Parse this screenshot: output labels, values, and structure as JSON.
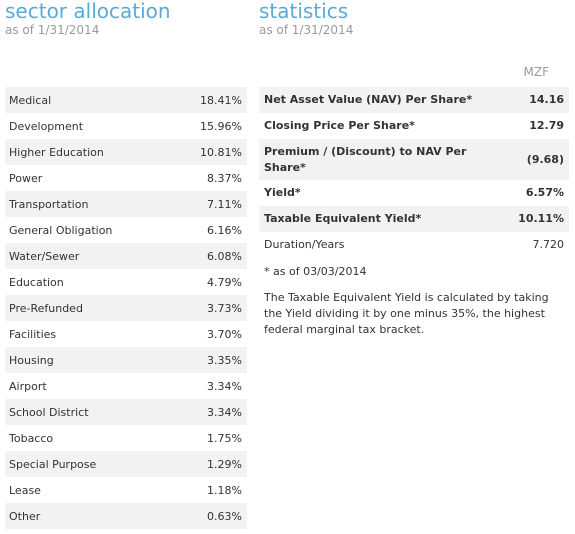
{
  "sector": {
    "title": "sector allocation",
    "as_of": "as of 1/31/2014",
    "rows": [
      {
        "name": "Medical",
        "value": "18.41%"
      },
      {
        "name": "Development",
        "value": "15.96%"
      },
      {
        "name": "Higher Education",
        "value": "10.81%"
      },
      {
        "name": "Power",
        "value": "8.37%"
      },
      {
        "name": "Transportation",
        "value": "7.11%"
      },
      {
        "name": "General Obligation",
        "value": "6.16%"
      },
      {
        "name": "Water/Sewer",
        "value": "6.08%"
      },
      {
        "name": "Education",
        "value": "4.79%"
      },
      {
        "name": "Pre-Refunded",
        "value": "3.73%"
      },
      {
        "name": "Facilities",
        "value": "3.70%"
      },
      {
        "name": "Housing",
        "value": "3.35%"
      },
      {
        "name": "Airport",
        "value": "3.34%"
      },
      {
        "name": "School District",
        "value": "3.34%"
      },
      {
        "name": "Tobacco",
        "value": "1.75%"
      },
      {
        "name": "Special Purpose",
        "value": "1.29%"
      },
      {
        "name": "Lease",
        "value": "1.18%"
      },
      {
        "name": "Other",
        "value": "0.63%"
      }
    ]
  },
  "statistics": {
    "title": "statistics",
    "as_of": "as of 1/31/2014",
    "ticker": "MZF",
    "rows": [
      {
        "label": "Net Asset Value (NAV) Per Share*",
        "value": "14.16"
      },
      {
        "label": "Closing Price Per Share*",
        "value": "12.79"
      },
      {
        "label": "Premium / (Discount) to NAV Per Share*",
        "value": "(9.68)"
      },
      {
        "label": "Yield*",
        "value": "6.57%"
      },
      {
        "label": "Taxable Equivalent Yield*",
        "value": "10.11%"
      },
      {
        "label": "Duration/Years",
        "value": "7.720"
      }
    ],
    "footnote_date": "* as of 03/03/2014",
    "footnote_text": "The Taxable Equivalent Yield is calculated by taking the Yield dividing it by one minus 35%, the highest federal marginal tax bracket."
  }
}
